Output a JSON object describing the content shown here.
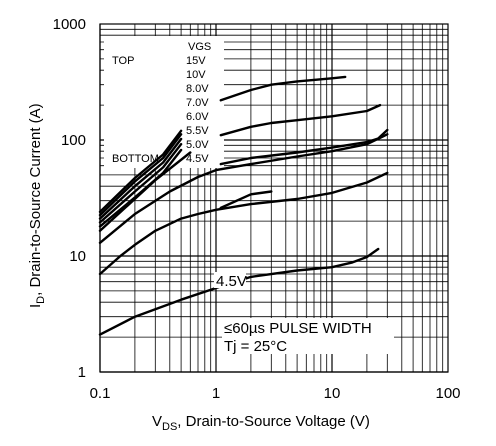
{
  "chart_data": {
    "type": "line",
    "x_scale": "log",
    "y_scale": "log",
    "xlim": [
      0.1,
      100
    ],
    "ylim": [
      1,
      1000
    ],
    "x_ticks": [
      "0.1",
      "1",
      "10",
      "100"
    ],
    "y_ticks": [
      "1",
      "10",
      "100",
      "1000"
    ],
    "xlabel_main": "V",
    "xlabel_sub": "DS",
    "xlabel_rest": ", Drain-to-Source Voltage (V)",
    "ylabel_main": "I",
    "ylabel_sub": "D",
    "ylabel_rest": ", Drain-to-Source Current (A)",
    "grid": true,
    "legend": {
      "placement": "top-left",
      "header": "VGS",
      "top_label": "TOP",
      "bottom_label": "BOTTOM",
      "entries": [
        "15V",
        "10V",
        "8.0V",
        "7.0V",
        "6.0V",
        "5.5V",
        "5.0V",
        "4.5V"
      ]
    },
    "annotations": {
      "curve_label": "4.5V",
      "pulse": "≤60µs PULSE WIDTH",
      "tj": "Tj = 25°C"
    },
    "series": [
      {
        "x": [
          0.1,
          0.2,
          0.35,
          0.5
        ],
        "y": [
          24,
          47,
          75,
          120
        ]
      },
      {
        "x": [
          0.1,
          0.2,
          0.35,
          0.5
        ],
        "y": [
          22.5,
          44,
          70,
          112
        ]
      },
      {
        "x": [
          0.1,
          0.2,
          0.35,
          0.5
        ],
        "y": [
          21,
          40,
          64,
          102
        ]
      },
      {
        "x": [
          0.1,
          0.2,
          0.35,
          0.5
        ],
        "y": [
          19.5,
          36,
          58,
          92
        ]
      },
      {
        "x": [
          0.1,
          0.2,
          0.35,
          0.5
        ],
        "y": [
          18,
          32,
          52,
          82
        ]
      },
      {
        "x": [
          0.1,
          0.3,
          0.6
        ],
        "y": [
          16.5,
          45,
          78
        ]
      },
      {
        "x": [
          0.1,
          0.2,
          0.4,
          0.7,
          1,
          2,
          5,
          10,
          20,
          30
        ],
        "y": [
          13,
          23,
          36,
          48,
          55,
          62,
          72,
          80,
          92,
          112
        ]
      },
      {
        "x": [
          0.1,
          0.15,
          0.2,
          0.3,
          0.5,
          0.7,
          1,
          2,
          5,
          10,
          20,
          30
        ],
        "y": [
          7,
          10,
          12.5,
          16.5,
          21,
          23,
          25,
          28,
          31,
          35,
          43,
          52
        ]
      },
      {
        "x": [
          0.1,
          0.2,
          0.5,
          1,
          2,
          5,
          10,
          15,
          20,
          25
        ],
        "y": [
          2.1,
          3,
          4.2,
          5.3,
          6.6,
          7.5,
          8,
          8.8,
          9.8,
          11.5
        ]
      },
      {
        "x": [
          1.1,
          2,
          3
        ],
        "y": [
          26,
          34,
          36
        ]
      },
      {
        "x": [
          1.1,
          2,
          3,
          5,
          10,
          13
        ],
        "y": [
          220,
          270,
          300,
          320,
          340,
          350
        ]
      },
      {
        "x": [
          1.1,
          2,
          3,
          5,
          10,
          20,
          26
        ],
        "y": [
          110,
          130,
          140,
          148,
          160,
          178,
          200
        ]
      },
      {
        "x": [
          1.1,
          2,
          5,
          10,
          20,
          25,
          30
        ],
        "y": [
          62,
          70,
          78,
          86,
          96,
          103,
          122
        ]
      }
    ]
  }
}
